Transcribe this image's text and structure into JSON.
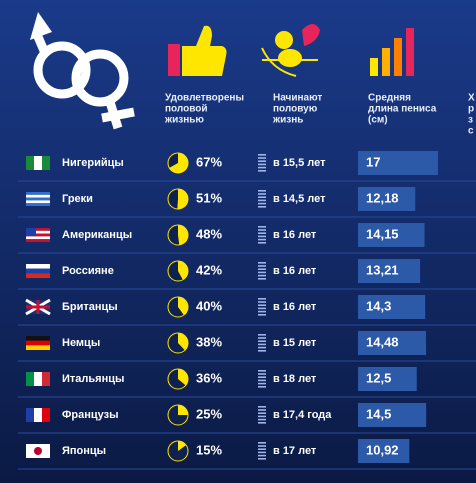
{
  "table": {
    "headers": [
      [
        "Удовлетворены",
        "половой",
        "жизнью"
      ],
      [
        "Начинают",
        "половую",
        "жизнь"
      ],
      [
        "Средняя",
        "длина пениса",
        "(см)"
      ],
      [
        "Х",
        "р",
        "з",
        "с"
      ]
    ],
    "rows": [
      {
        "nation": "Нигерийцы",
        "satisfied": 67,
        "satisfied_label": "67%",
        "start": "в 15,5 лет",
        "length": 17,
        "length_label": "17"
      },
      {
        "nation": "Греки",
        "satisfied": 51,
        "satisfied_label": "51%",
        "start": "в 14,5 лет",
        "length": 12.18,
        "length_label": "12,18"
      },
      {
        "nation": "Американцы",
        "satisfied": 48,
        "satisfied_label": "48%",
        "start": "в 16 лет",
        "length": 14.15,
        "length_label": "14,15"
      },
      {
        "nation": "Россияне",
        "satisfied": 42,
        "satisfied_label": "42%",
        "start": "в 16 лет",
        "length": 13.21,
        "length_label": "13,21"
      },
      {
        "nation": "Британцы",
        "satisfied": 40,
        "satisfied_label": "40%",
        "start": "в 16 лет",
        "length": 14.3,
        "length_label": "14,3"
      },
      {
        "nation": "Немцы",
        "satisfied": 38,
        "satisfied_label": "38%",
        "start": "в 15 лет",
        "length": 14.48,
        "length_label": "14,48"
      },
      {
        "nation": "Итальянцы",
        "satisfied": 36,
        "satisfied_label": "36%",
        "start": "в 18 лет",
        "length": 12.5,
        "length_label": "12,5"
      },
      {
        "nation": "Французы",
        "satisfied": 25,
        "satisfied_label": "25%",
        "start": "в 17,4 года",
        "length": 14.5,
        "length_label": "14,5"
      },
      {
        "nation": "Японцы",
        "satisfied": 15,
        "satisfied_label": "15%",
        "start": "в 17 лет",
        "length": 10.92,
        "length_label": "10,92"
      }
    ]
  }
}
